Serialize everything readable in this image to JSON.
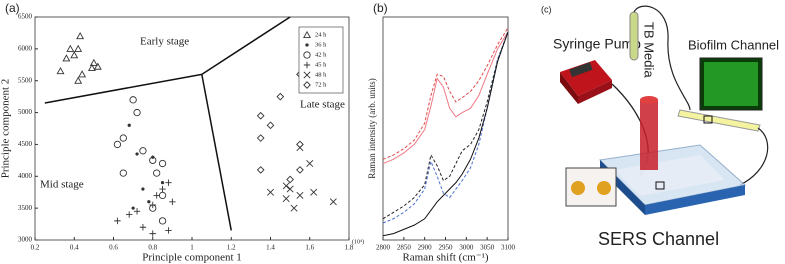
{
  "chart_data": [
    {
      "type": "scatter",
      "panel_label": "(a)",
      "x_label": "Principle component 1",
      "y_label": "Principle component 2",
      "x_unit": "(10⁴)",
      "xlim": [
        0.2,
        1.8
      ],
      "ylim": [
        3000,
        6500
      ],
      "xticks": [
        0.2,
        0.4,
        0.6,
        0.8,
        1,
        1.2,
        1.4,
        1.6,
        1.8
      ],
      "yticks": [
        3000,
        3500,
        4000,
        4500,
        5000,
        5500,
        6000,
        6500
      ],
      "annotations": [
        "Early stage",
        "Mid stage",
        "Late stage"
      ],
      "legend": "upper right",
      "series": [
        {
          "name": "24 h",
          "marker": "triangle",
          "color": "#333333",
          "x": [
            0.43,
            0.38,
            0.42,
            0.4,
            0.36,
            0.5,
            0.52,
            0.49,
            0.33,
            0.44,
            0.42
          ],
          "y": [
            6200,
            6000,
            6000,
            5900,
            5850,
            5780,
            5720,
            5700,
            5650,
            5600,
            5500
          ]
        },
        {
          "name": "36 h",
          "marker": "dot",
          "color": "#333333",
          "x": [
            0.68,
            0.72,
            0.8,
            0.85,
            0.75,
            0.78,
            0.7
          ],
          "y": [
            4800,
            4350,
            4300,
            3900,
            3800,
            3600,
            3500
          ]
        },
        {
          "name": "42 h",
          "marker": "circle",
          "color": "#333333",
          "x": [
            0.7,
            0.72,
            0.65,
            0.62,
            0.75,
            0.8,
            0.85,
            0.82,
            0.65,
            0.85,
            0.8,
            0.85
          ],
          "y": [
            5200,
            5000,
            4600,
            4500,
            4400,
            4250,
            4200,
            4050,
            4050,
            3700,
            3500,
            3300
          ]
        },
        {
          "name": "45 h",
          "marker": "plus",
          "color": "#333333",
          "x": [
            0.88,
            0.85,
            0.82,
            0.9,
            0.8,
            0.72,
            0.62,
            0.68,
            0.88,
            0.8,
            0.75
          ],
          "y": [
            3900,
            3800,
            3700,
            3600,
            3550,
            3450,
            3300,
            3400,
            3150,
            3100,
            3200
          ]
        },
        {
          "name": "48 h",
          "marker": "cross",
          "color": "#333333",
          "x": [
            1.55,
            1.6,
            1.48,
            1.4,
            1.5,
            1.55,
            1.62,
            1.48,
            1.72,
            1.52
          ],
          "y": [
            4450,
            4200,
            3850,
            3750,
            3800,
            3700,
            3750,
            3650,
            3600,
            3500
          ]
        },
        {
          "name": "72 h",
          "marker": "diamond",
          "color": "#333333",
          "x": [
            1.55,
            1.45,
            1.35,
            1.4,
            1.35,
            1.55,
            1.35,
            1.55,
            1.5
          ],
          "y": [
            5600,
            5250,
            4950,
            4800,
            4600,
            4500,
            4100,
            4100,
            3950
          ]
        }
      ],
      "boundaries": [
        {
          "x": [
            1.05,
            0.25
          ],
          "y": [
            5600,
            5150
          ]
        },
        {
          "x": [
            1.05,
            1.5
          ],
          "y": [
            5600,
            6500
          ]
        },
        {
          "x": [
            1.05,
            1.2
          ],
          "y": [
            5600,
            3150
          ]
        }
      ]
    },
    {
      "type": "line",
      "panel_label": "(b)",
      "x_label": "Raman shift (cm⁻¹)",
      "y_label": "Raman intensity (arb. units)",
      "xlim": [
        2800,
        3100
      ],
      "ylim": [
        0,
        1.05
      ],
      "xticks": [
        2800,
        2850,
        2900,
        2950,
        3000,
        3050,
        3100
      ],
      "x": [
        2800,
        2825,
        2850,
        2875,
        2900,
        2915,
        2930,
        2945,
        2960,
        2975,
        2990,
        3010,
        3030,
        3050,
        3075,
        3100
      ],
      "series": [
        {
          "color": "#e04848",
          "dashed": true,
          "values": [
            0.38,
            0.4,
            0.43,
            0.47,
            0.55,
            0.68,
            0.78,
            0.77,
            0.7,
            0.65,
            0.67,
            0.7,
            0.75,
            0.82,
            0.92,
            1.0
          ]
        },
        {
          "color": "#f07a86",
          "dashed": false,
          "values": [
            0.36,
            0.38,
            0.41,
            0.45,
            0.52,
            0.63,
            0.76,
            0.72,
            0.62,
            0.58,
            0.6,
            0.62,
            0.68,
            0.78,
            0.9,
            0.98
          ]
        },
        {
          "color": "#222222",
          "dashed": true,
          "values": [
            0.1,
            0.13,
            0.16,
            0.2,
            0.26,
            0.4,
            0.35,
            0.28,
            0.3,
            0.36,
            0.42,
            0.45,
            0.52,
            0.65,
            0.85,
            0.98
          ]
        },
        {
          "color": "#4a6fd0",
          "dashed": true,
          "values": [
            0.08,
            0.1,
            0.13,
            0.17,
            0.24,
            0.37,
            0.3,
            0.22,
            0.2,
            0.24,
            0.28,
            0.34,
            0.45,
            0.62,
            0.85,
            0.98
          ]
        },
        {
          "color": "#111111",
          "dashed": false,
          "values": [
            0.02,
            0.03,
            0.05,
            0.07,
            0.1,
            0.14,
            0.18,
            0.21,
            0.24,
            0.27,
            0.31,
            0.38,
            0.48,
            0.62,
            0.84,
            0.98
          ]
        }
      ]
    }
  ],
  "diagram": {
    "panel_label": "(c)",
    "syringe_pump": "Syringe Pump",
    "media": "TB Media",
    "biofilm_channel": "Biofilm Channel",
    "sers_channel": "SERS Channel"
  }
}
